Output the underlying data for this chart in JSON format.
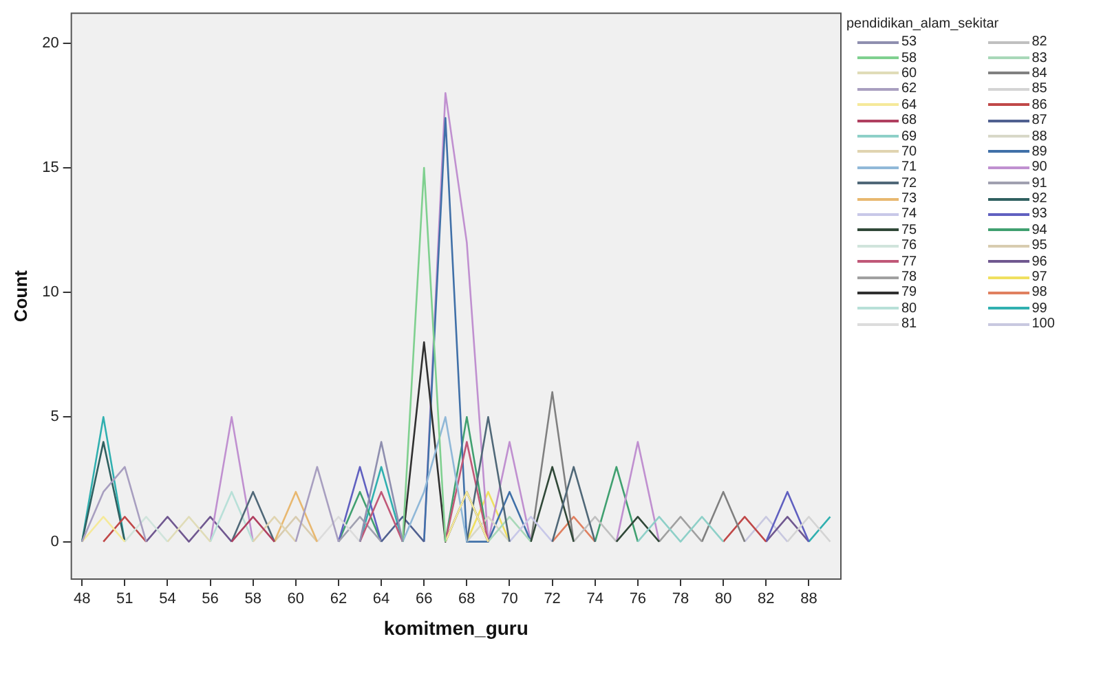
{
  "chart_data": {
    "type": "line",
    "xlabel": "komitmen_guru",
    "ylabel": "Count",
    "legend_title": "pendidikan_alam_sekitar",
    "legend": "right",
    "marker": "none",
    "line_style": "solid",
    "categories": [
      "48",
      null,
      "51",
      null,
      "54",
      null,
      "56",
      null,
      "58",
      null,
      "60",
      null,
      "62",
      null,
      "64",
      null,
      "66",
      null,
      "68",
      null,
      "70",
      null,
      "72",
      null,
      "74",
      null,
      "76",
      null,
      "78",
      null,
      "80",
      null,
      "82",
      null,
      "88",
      null
    ],
    "ylim": [
      -1.5,
      21.2
    ],
    "yticks": [
      0,
      5,
      10,
      15,
      20
    ],
    "series": [
      {
        "name": "53",
        "color": "#8f8faf",
        "values": [
          null,
          null,
          null,
          null,
          null,
          null,
          null,
          null,
          null,
          null,
          null,
          null,
          null,
          0,
          4,
          0,
          null,
          null,
          null,
          null,
          null,
          null,
          null,
          null,
          null,
          null,
          null,
          null,
          null,
          null,
          null,
          null,
          null,
          null,
          null,
          null
        ]
      },
      {
        "name": "58",
        "color": "#7fd08f",
        "values": [
          null,
          null,
          null,
          null,
          null,
          null,
          null,
          null,
          null,
          null,
          null,
          null,
          null,
          null,
          null,
          0,
          15,
          0,
          null,
          null,
          null,
          null,
          null,
          null,
          null,
          null,
          null,
          null,
          null,
          null,
          null,
          null,
          null,
          null,
          null,
          null
        ]
      },
      {
        "name": "60",
        "color": "#e0dcb8",
        "values": [
          null,
          null,
          null,
          null,
          0,
          1,
          0,
          null,
          null,
          null,
          null,
          null,
          null,
          null,
          null,
          null,
          null,
          null,
          null,
          null,
          null,
          null,
          null,
          null,
          null,
          null,
          null,
          null,
          null,
          null,
          null,
          null,
          null,
          null,
          null,
          null
        ]
      },
      {
        "name": "62",
        "color": "#a89fc0",
        "values": [
          0,
          2,
          3,
          0,
          null,
          null,
          null,
          null,
          null,
          null,
          0,
          3,
          0,
          null,
          null,
          null,
          null,
          null,
          null,
          null,
          null,
          null,
          null,
          null,
          null,
          null,
          null,
          null,
          null,
          null,
          null,
          null,
          null,
          null,
          null,
          null
        ]
      },
      {
        "name": "64",
        "color": "#f5e99a",
        "values": [
          0,
          1,
          0,
          null,
          null,
          null,
          null,
          null,
          null,
          null,
          null,
          null,
          null,
          null,
          null,
          null,
          null,
          0,
          2,
          0,
          null,
          null,
          null,
          null,
          null,
          null,
          null,
          null,
          null,
          null,
          null,
          null,
          null,
          null,
          null,
          null
        ]
      },
      {
        "name": "68",
        "color": "#b04060",
        "values": [
          null,
          null,
          null,
          null,
          null,
          null,
          null,
          0,
          1,
          0,
          null,
          null,
          null,
          null,
          null,
          null,
          null,
          null,
          null,
          null,
          null,
          null,
          null,
          null,
          null,
          null,
          null,
          null,
          null,
          null,
          null,
          null,
          null,
          null,
          null,
          null
        ]
      },
      {
        "name": "69",
        "color": "#8ed0c8",
        "values": [
          null,
          null,
          null,
          null,
          null,
          null,
          null,
          null,
          null,
          null,
          null,
          null,
          null,
          null,
          null,
          null,
          null,
          null,
          null,
          null,
          null,
          null,
          null,
          null,
          null,
          null,
          0,
          1,
          0,
          1,
          0,
          null,
          null,
          null,
          null,
          null
        ]
      },
      {
        "name": "70",
        "color": "#e0d4b0",
        "values": [
          null,
          null,
          null,
          null,
          null,
          null,
          null,
          null,
          0,
          1,
          0,
          null,
          null,
          null,
          null,
          null,
          null,
          null,
          null,
          null,
          null,
          null,
          null,
          null,
          null,
          null,
          null,
          null,
          null,
          null,
          null,
          null,
          null,
          null,
          null,
          null
        ]
      },
      {
        "name": "71",
        "color": "#90b8d8",
        "values": [
          null,
          null,
          null,
          null,
          null,
          null,
          null,
          null,
          null,
          null,
          null,
          null,
          null,
          null,
          null,
          0,
          2,
          5,
          0,
          null,
          null,
          null,
          null,
          null,
          null,
          null,
          null,
          null,
          null,
          null,
          null,
          null,
          null,
          null,
          null,
          null
        ]
      },
      {
        "name": "72",
        "color": "#506878",
        "values": [
          null,
          null,
          null,
          null,
          null,
          null,
          null,
          0,
          2,
          0,
          null,
          null,
          null,
          null,
          null,
          null,
          null,
          null,
          0,
          5,
          0,
          null,
          0,
          3,
          0,
          null,
          null,
          null,
          null,
          null,
          null,
          null,
          null,
          null,
          null,
          null
        ]
      },
      {
        "name": "73",
        "color": "#e8b870",
        "values": [
          null,
          null,
          null,
          null,
          null,
          null,
          null,
          null,
          null,
          0,
          2,
          0,
          null,
          null,
          null,
          null,
          null,
          null,
          null,
          null,
          null,
          null,
          null,
          null,
          null,
          null,
          null,
          null,
          null,
          null,
          null,
          null,
          null,
          null,
          null,
          null
        ]
      },
      {
        "name": "74",
        "color": "#c8c8e8",
        "values": [
          null,
          null,
          null,
          null,
          null,
          null,
          null,
          null,
          null,
          null,
          null,
          null,
          null,
          null,
          null,
          null,
          null,
          null,
          null,
          null,
          0,
          1,
          0,
          null,
          null,
          null,
          null,
          null,
          null,
          null,
          null,
          null,
          null,
          null,
          null,
          null
        ]
      },
      {
        "name": "75",
        "color": "#304838",
        "values": [
          null,
          null,
          null,
          null,
          null,
          null,
          null,
          null,
          null,
          null,
          null,
          null,
          null,
          null,
          null,
          null,
          null,
          null,
          null,
          null,
          null,
          0,
          3,
          0,
          null,
          0,
          1,
          0,
          null,
          null,
          null,
          null,
          null,
          null,
          null,
          null
        ]
      },
      {
        "name": "76",
        "color": "#d0e4dc",
        "values": [
          null,
          null,
          0,
          1,
          0,
          null,
          null,
          null,
          null,
          null,
          null,
          null,
          null,
          null,
          null,
          null,
          null,
          null,
          null,
          null,
          null,
          null,
          null,
          null,
          null,
          null,
          null,
          null,
          null,
          null,
          null,
          null,
          null,
          null,
          null,
          null
        ]
      },
      {
        "name": "77",
        "color": "#c05878",
        "values": [
          null,
          null,
          null,
          null,
          null,
          null,
          null,
          null,
          null,
          null,
          null,
          null,
          null,
          0,
          2,
          0,
          null,
          0,
          4,
          0,
          null,
          null,
          null,
          null,
          null,
          null,
          null,
          null,
          null,
          null,
          null,
          null,
          null,
          null,
          null,
          null
        ]
      },
      {
        "name": "78",
        "color": "#a0a0a0",
        "values": [
          null,
          null,
          null,
          null,
          null,
          null,
          null,
          null,
          null,
          null,
          null,
          null,
          null,
          null,
          null,
          null,
          null,
          null,
          null,
          null,
          null,
          null,
          null,
          null,
          null,
          null,
          null,
          0,
          1,
          0,
          null,
          null,
          null,
          null,
          null,
          null
        ]
      },
      {
        "name": "79",
        "color": "#303030",
        "values": [
          null,
          null,
          null,
          null,
          null,
          null,
          null,
          null,
          null,
          null,
          null,
          null,
          null,
          null,
          null,
          0,
          8,
          0,
          2,
          0,
          null,
          null,
          null,
          null,
          null,
          null,
          null,
          null,
          null,
          null,
          null,
          null,
          null,
          null,
          null,
          null
        ]
      },
      {
        "name": "80",
        "color": "#b8e0d8",
        "values": [
          null,
          null,
          null,
          null,
          null,
          null,
          0,
          2,
          0,
          null,
          null,
          null,
          null,
          null,
          null,
          null,
          null,
          null,
          null,
          null,
          null,
          null,
          null,
          null,
          null,
          null,
          null,
          null,
          null,
          null,
          null,
          null,
          null,
          null,
          null,
          null
        ]
      },
      {
        "name": "81",
        "color": "#dcdcdc",
        "values": [
          null,
          null,
          null,
          null,
          null,
          null,
          null,
          null,
          null,
          null,
          null,
          0,
          1,
          0,
          null,
          null,
          null,
          null,
          null,
          null,
          null,
          null,
          null,
          null,
          null,
          null,
          null,
          null,
          null,
          null,
          null,
          null,
          null,
          null,
          null,
          null
        ]
      },
      {
        "name": "82",
        "color": "#c0c0c0",
        "values": [
          null,
          null,
          null,
          null,
          null,
          null,
          null,
          null,
          null,
          null,
          null,
          null,
          null,
          null,
          null,
          null,
          null,
          null,
          null,
          null,
          null,
          null,
          null,
          0,
          1,
          0,
          null,
          null,
          null,
          null,
          null,
          null,
          null,
          null,
          null,
          null
        ]
      },
      {
        "name": "83",
        "color": "#a8d8b8",
        "values": [
          null,
          null,
          null,
          null,
          null,
          null,
          null,
          null,
          null,
          null,
          null,
          null,
          null,
          null,
          null,
          null,
          null,
          null,
          null,
          0,
          1,
          0,
          null,
          null,
          null,
          null,
          null,
          null,
          null,
          null,
          null,
          null,
          null,
          null,
          null,
          null
        ]
      },
      {
        "name": "84",
        "color": "#808080",
        "values": [
          null,
          null,
          null,
          null,
          null,
          null,
          null,
          null,
          null,
          null,
          null,
          null,
          null,
          null,
          null,
          null,
          null,
          null,
          null,
          null,
          null,
          0,
          6,
          0,
          null,
          null,
          null,
          null,
          null,
          0,
          2,
          0,
          null,
          null,
          null,
          null
        ]
      },
      {
        "name": "85",
        "color": "#d4d4d4",
        "values": [
          null,
          null,
          null,
          null,
          null,
          null,
          null,
          null,
          null,
          null,
          null,
          null,
          null,
          null,
          null,
          null,
          null,
          null,
          null,
          null,
          null,
          null,
          null,
          null,
          null,
          null,
          null,
          null,
          null,
          null,
          null,
          null,
          null,
          0,
          1,
          0
        ]
      },
      {
        "name": "86",
        "color": "#c04848",
        "values": [
          null,
          0,
          1,
          0,
          null,
          null,
          null,
          null,
          null,
          null,
          null,
          null,
          null,
          null,
          null,
          null,
          null,
          null,
          null,
          null,
          null,
          null,
          null,
          null,
          null,
          null,
          null,
          null,
          null,
          null,
          0,
          1,
          0,
          null,
          null,
          null
        ]
      },
      {
        "name": "87",
        "color": "#506090",
        "values": [
          null,
          null,
          null,
          null,
          null,
          null,
          null,
          null,
          null,
          null,
          null,
          null,
          null,
          null,
          0,
          1,
          0,
          null,
          null,
          null,
          null,
          null,
          null,
          null,
          null,
          null,
          null,
          null,
          null,
          null,
          null,
          null,
          null,
          null,
          null,
          null
        ]
      },
      {
        "name": "88",
        "color": "#d8d8c8",
        "values": [
          null,
          null,
          null,
          null,
          null,
          null,
          null,
          null,
          null,
          null,
          null,
          null,
          null,
          null,
          null,
          null,
          null,
          null,
          0,
          1,
          0,
          null,
          null,
          null,
          null,
          null,
          null,
          null,
          null,
          null,
          null,
          null,
          null,
          null,
          null,
          null
        ]
      },
      {
        "name": "89",
        "color": "#4070a8",
        "values": [
          null,
          null,
          null,
          null,
          null,
          null,
          null,
          null,
          null,
          null,
          null,
          null,
          null,
          null,
          null,
          null,
          0,
          17,
          0,
          0,
          2,
          0,
          null,
          null,
          null,
          null,
          null,
          null,
          null,
          null,
          null,
          null,
          null,
          null,
          null,
          null
        ]
      },
      {
        "name": "90",
        "color": "#c090d0",
        "values": [
          null,
          null,
          null,
          null,
          null,
          null,
          0,
          5,
          0,
          null,
          null,
          null,
          null,
          null,
          null,
          null,
          0,
          18,
          12,
          0,
          4,
          0,
          null,
          null,
          null,
          0,
          4,
          0,
          null,
          null,
          null,
          null,
          null,
          null,
          null,
          null
        ]
      },
      {
        "name": "91",
        "color": "#a0a0b0",
        "values": [
          null,
          null,
          null,
          null,
          null,
          null,
          null,
          null,
          null,
          null,
          null,
          null,
          0,
          1,
          0,
          null,
          null,
          null,
          null,
          null,
          null,
          null,
          null,
          null,
          null,
          null,
          null,
          null,
          null,
          null,
          null,
          null,
          null,
          null,
          null,
          null
        ]
      },
      {
        "name": "92",
        "color": "#306060",
        "values": [
          0,
          4,
          0,
          null,
          null,
          null,
          null,
          null,
          null,
          null,
          null,
          null,
          null,
          null,
          null,
          null,
          null,
          null,
          null,
          null,
          null,
          null,
          null,
          null,
          null,
          null,
          null,
          null,
          null,
          null,
          null,
          null,
          null,
          null,
          null,
          null
        ]
      },
      {
        "name": "93",
        "color": "#6060c0",
        "values": [
          null,
          null,
          null,
          null,
          null,
          null,
          null,
          null,
          null,
          null,
          null,
          null,
          0,
          3,
          0,
          null,
          null,
          null,
          null,
          null,
          null,
          null,
          null,
          null,
          null,
          null,
          null,
          null,
          null,
          null,
          null,
          null,
          0,
          2,
          0,
          null
        ]
      },
      {
        "name": "94",
        "color": "#40a070",
        "values": [
          null,
          null,
          null,
          null,
          null,
          null,
          null,
          null,
          null,
          null,
          null,
          null,
          0,
          2,
          0,
          null,
          null,
          0,
          5,
          0,
          null,
          null,
          null,
          null,
          0,
          3,
          0,
          null,
          null,
          null,
          null,
          null,
          null,
          null,
          null,
          null
        ]
      },
      {
        "name": "95",
        "color": "#d8ccb0",
        "values": [
          null,
          null,
          null,
          null,
          null,
          null,
          null,
          null,
          null,
          0,
          1,
          0,
          null,
          null,
          null,
          null,
          null,
          null,
          null,
          null,
          null,
          null,
          null,
          null,
          null,
          null,
          null,
          null,
          null,
          null,
          null,
          null,
          null,
          null,
          null,
          null
        ]
      },
      {
        "name": "96",
        "color": "#705890",
        "values": [
          null,
          null,
          null,
          0,
          1,
          0,
          1,
          0,
          null,
          null,
          null,
          null,
          null,
          null,
          null,
          null,
          null,
          null,
          null,
          null,
          null,
          null,
          null,
          null,
          null,
          null,
          null,
          null,
          null,
          null,
          null,
          null,
          0,
          1,
          0,
          null
        ]
      },
      {
        "name": "97",
        "color": "#f0e060",
        "values": [
          null,
          null,
          null,
          null,
          null,
          null,
          null,
          null,
          null,
          null,
          null,
          null,
          null,
          null,
          null,
          null,
          null,
          null,
          0,
          2,
          0,
          null,
          null,
          null,
          null,
          null,
          null,
          null,
          null,
          null,
          null,
          null,
          null,
          null,
          null,
          null
        ]
      },
      {
        "name": "98",
        "color": "#e08060",
        "values": [
          null,
          null,
          null,
          null,
          null,
          null,
          null,
          null,
          null,
          null,
          null,
          null,
          null,
          null,
          null,
          null,
          null,
          null,
          null,
          null,
          null,
          null,
          0,
          1,
          0,
          null,
          null,
          null,
          null,
          null,
          null,
          null,
          null,
          null,
          null,
          null
        ]
      },
      {
        "name": "99",
        "color": "#30b0b0",
        "values": [
          0,
          5,
          0,
          null,
          null,
          null,
          null,
          null,
          null,
          null,
          null,
          null,
          null,
          0,
          3,
          0,
          null,
          null,
          null,
          null,
          null,
          null,
          null,
          null,
          null,
          null,
          null,
          null,
          null,
          null,
          null,
          null,
          null,
          null,
          0,
          1
        ]
      },
      {
        "name": "100",
        "color": "#c8c8e0",
        "values": [
          null,
          null,
          null,
          null,
          null,
          null,
          null,
          null,
          null,
          null,
          null,
          null,
          null,
          null,
          null,
          null,
          null,
          null,
          null,
          null,
          null,
          null,
          null,
          null,
          null,
          null,
          null,
          null,
          null,
          null,
          null,
          0,
          1,
          0,
          null,
          null
        ]
      }
    ]
  }
}
